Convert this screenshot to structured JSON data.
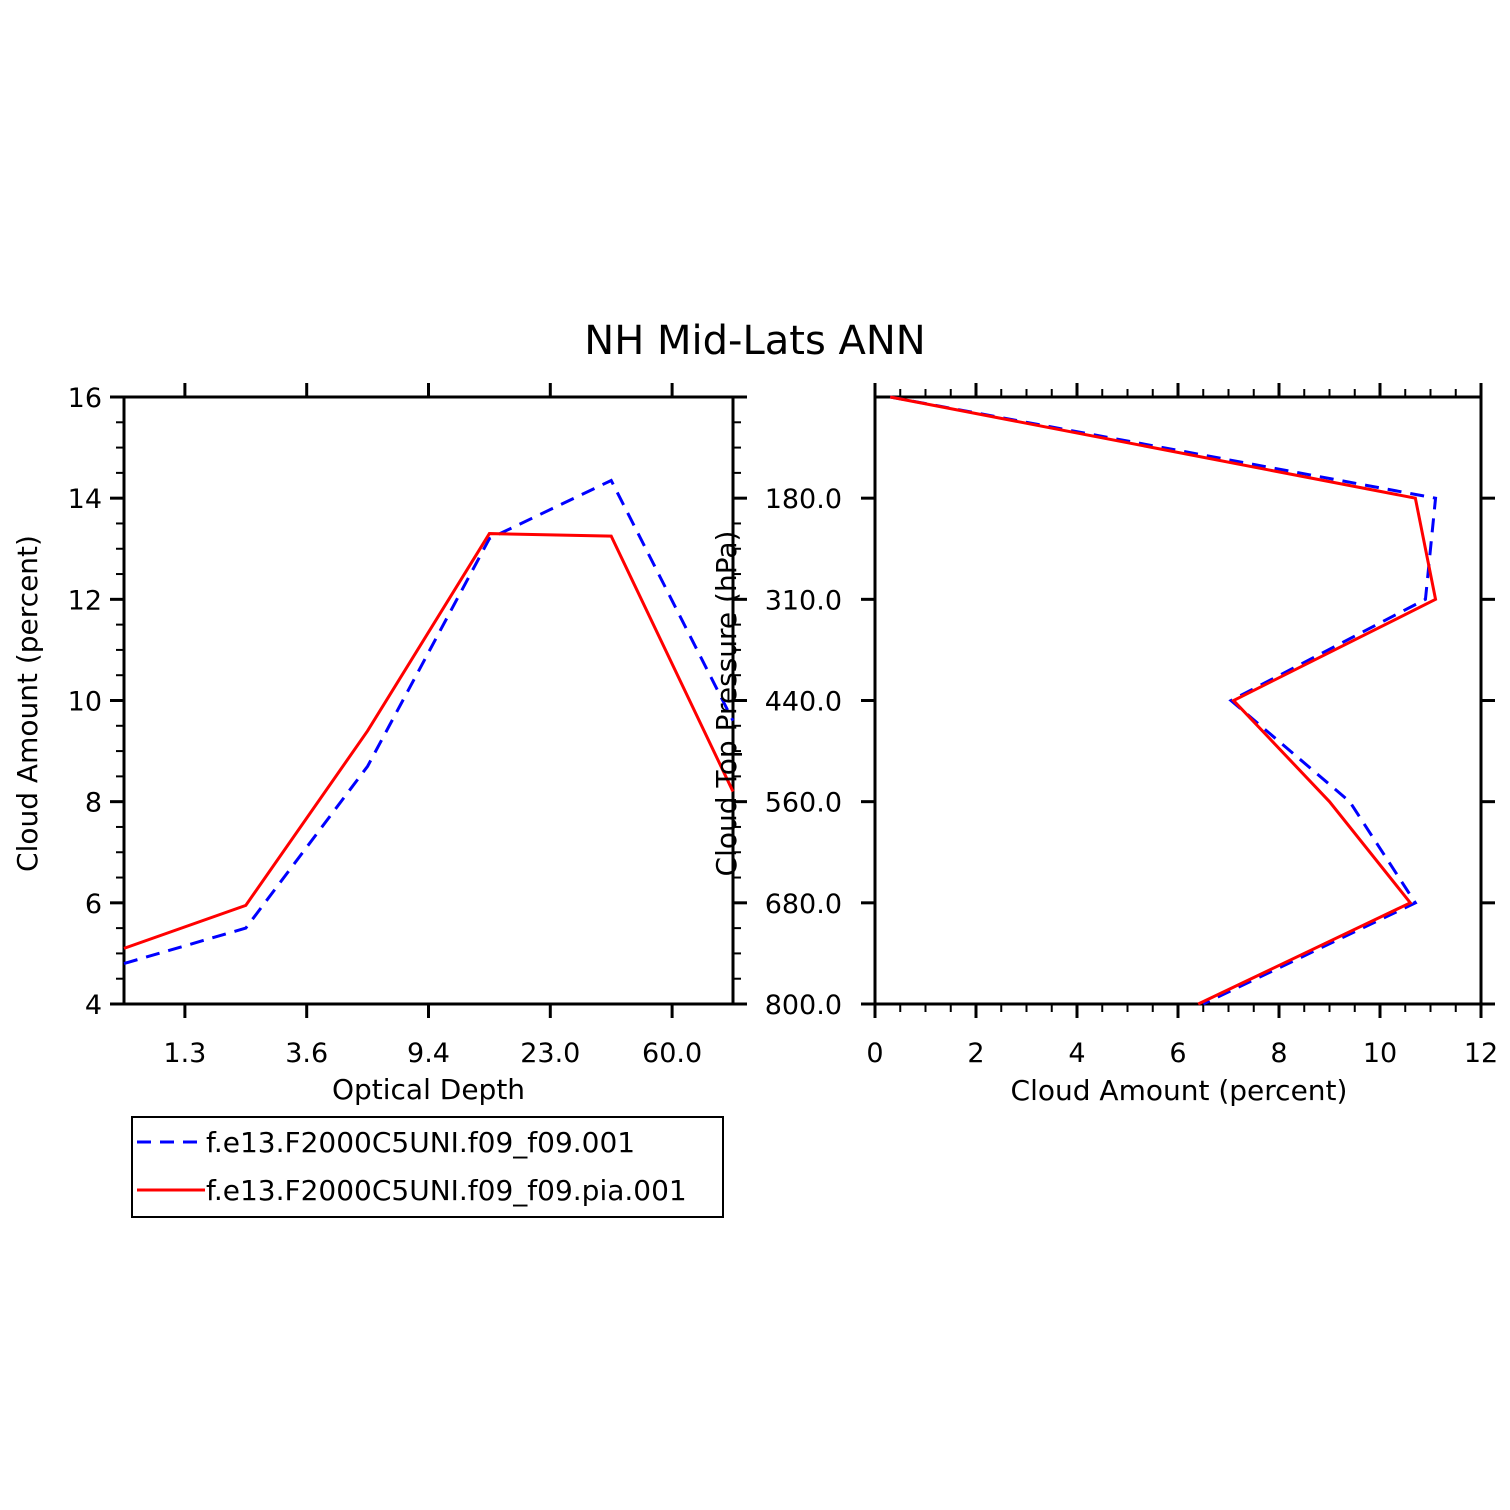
{
  "title": "NH Mid-Lats ANN",
  "colors": {
    "series_1": "#0000ff",
    "series_2": "#ff0000",
    "axis": "#000000"
  },
  "legend": {
    "entries": [
      {
        "label": "f.e13.F2000C5UNI.f09_f09.001",
        "color": "#0000ff",
        "style": "dashed"
      },
      {
        "label": "f.e13.F2000C5UNI.f09_f09.pia.001",
        "color": "#ff0000",
        "style": "solid"
      }
    ]
  },
  "chart_data": [
    {
      "type": "line",
      "xlabel": "Optical Depth",
      "ylabel": "Cloud Amount (percent)",
      "x_tick_labels": [
        "1.3",
        "3.6",
        "9.4",
        "23.0",
        "60.0"
      ],
      "y_tick_labels": [
        "4",
        "6",
        "8",
        "10",
        "12",
        "14",
        "16"
      ],
      "ylim": [
        4,
        16
      ],
      "series": [
        {
          "name": "f.e13.F2000C5UNI.f09_f09.001",
          "values": [
            4.8,
            5.5,
            8.7,
            13.2,
            14.35,
            9.6
          ]
        },
        {
          "name": "f.e13.F2000C5UNI.f09_f09.pia.001",
          "values": [
            5.1,
            5.95,
            9.4,
            13.3,
            13.25,
            8.2
          ]
        }
      ],
      "grid": false
    },
    {
      "type": "line",
      "xlabel": "Cloud Amount (percent)",
      "ylabel": "Cloud Top Pressure (hPa)",
      "x_tick_labels": [
        "0",
        "2",
        "4",
        "6",
        "8",
        "10",
        "12"
      ],
      "y_tick_labels": [
        "180.0",
        "310.0",
        "440.0",
        "560.0",
        "680.0",
        "800.0"
      ],
      "xlim": [
        0,
        12
      ],
      "series": [
        {
          "name": "f.e13.F2000C5UNI.f09_f09.001",
          "values": [
            0.3,
            11.1,
            10.9,
            7.05,
            9.4,
            10.7,
            6.5
          ]
        },
        {
          "name": "f.e13.F2000C5UNI.f09_f09.pia.001",
          "values": [
            0.3,
            10.7,
            11.1,
            7.1,
            9.0,
            10.6,
            6.4
          ]
        }
      ],
      "grid": false
    }
  ]
}
